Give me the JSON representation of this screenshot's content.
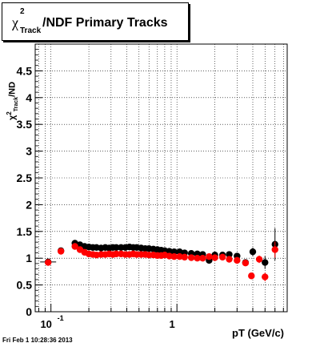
{
  "title": {
    "chi": "χ",
    "sup": "2",
    "sub": "Track",
    "rest": "/NDF  Primary Tracks"
  },
  "ylabel": {
    "chi": "χ",
    "sup": "2",
    "sub": "Track",
    "rest": "/ND"
  },
  "timestamp": "Fri Feb  1 10:28:36 2013",
  "chart_data": {
    "type": "scatter",
    "title": "χ²Track/NDF  Primary Tracks",
    "xlabel": "pT (GeV/c)",
    "ylabel": "χ²Track/ND",
    "xscale": "log",
    "xlim": [
      0.075,
      7.5
    ],
    "ylim": [
      0,
      5
    ],
    "grid": true,
    "yticks": [
      0,
      0.5,
      1,
      1.5,
      2,
      2.5,
      3,
      3.5,
      4,
      4.5
    ],
    "ytick_labels": [
      "0",
      "0.5",
      "1",
      "1.5",
      "2",
      "2.5",
      "3",
      "3.5",
      "4",
      "4.5"
    ],
    "xtick_labels": [
      {
        "v": 0.1,
        "base": "10",
        "exp": "-1"
      },
      {
        "v": 1,
        "base": "1",
        "exp": ""
      }
    ],
    "series": [
      {
        "color": "#000000",
        "points": [
          [
            0.095,
            0.93,
            0.012
          ],
          [
            0.12,
            1.14,
            0.012
          ],
          [
            0.155,
            1.28,
            0.01
          ],
          [
            0.17,
            1.25,
            0.01
          ],
          [
            0.185,
            1.22,
            0.01
          ],
          [
            0.2,
            1.21,
            0.01
          ],
          [
            0.215,
            1.2,
            0.01
          ],
          [
            0.23,
            1.2,
            0.01
          ],
          [
            0.25,
            1.19,
            0.01
          ],
          [
            0.27,
            1.2,
            0.01
          ],
          [
            0.29,
            1.19,
            0.01
          ],
          [
            0.31,
            1.2,
            0.01
          ],
          [
            0.33,
            1.2,
            0.01
          ],
          [
            0.36,
            1.2,
            0.01
          ],
          [
            0.39,
            1.2,
            0.01
          ],
          [
            0.42,
            1.21,
            0.01
          ],
          [
            0.45,
            1.2,
            0.01
          ],
          [
            0.48,
            1.2,
            0.01
          ],
          [
            0.52,
            1.19,
            0.01
          ],
          [
            0.56,
            1.18,
            0.01
          ],
          [
            0.6,
            1.18,
            0.01
          ],
          [
            0.65,
            1.17,
            0.01
          ],
          [
            0.7,
            1.16,
            0.01
          ],
          [
            0.75,
            1.15,
            0.01
          ],
          [
            0.8,
            1.14,
            0.01
          ],
          [
            0.87,
            1.13,
            0.01
          ],
          [
            0.95,
            1.12,
            0.01
          ],
          [
            1.05,
            1.12,
            0.01
          ],
          [
            1.15,
            1.1,
            0.01
          ],
          [
            1.3,
            1.09,
            0.01
          ],
          [
            1.45,
            1.08,
            0.01
          ],
          [
            1.6,
            1.07,
            0.01
          ],
          [
            1.8,
            0.96,
            0.02
          ],
          [
            2.0,
            1.06,
            0.02
          ],
          [
            2.3,
            1.06,
            0.02
          ],
          [
            2.6,
            1.07,
            0.03
          ],
          [
            3.0,
            1.04,
            0.03
          ],
          [
            3.5,
            0.92,
            0.05
          ],
          [
            4.0,
            1.12,
            0.08
          ],
          [
            5.0,
            0.92,
            0.12
          ],
          [
            6.0,
            1.26,
            0.3
          ]
        ]
      },
      {
        "color": "#ff0000",
        "points": [
          [
            0.095,
            0.92,
            0.01
          ],
          [
            0.12,
            1.13,
            0.01
          ],
          [
            0.155,
            1.22,
            0.01
          ],
          [
            0.17,
            1.16,
            0.01
          ],
          [
            0.185,
            1.11,
            0.01
          ],
          [
            0.2,
            1.08,
            0.01
          ],
          [
            0.215,
            1.07,
            0.01
          ],
          [
            0.23,
            1.06,
            0.01
          ],
          [
            0.25,
            1.07,
            0.01
          ],
          [
            0.27,
            1.07,
            0.01
          ],
          [
            0.29,
            1.08,
            0.01
          ],
          [
            0.31,
            1.07,
            0.01
          ],
          [
            0.33,
            1.08,
            0.01
          ],
          [
            0.36,
            1.08,
            0.01
          ],
          [
            0.39,
            1.07,
            0.01
          ],
          [
            0.42,
            1.07,
            0.01
          ],
          [
            0.45,
            1.08,
            0.01
          ],
          [
            0.48,
            1.07,
            0.01
          ],
          [
            0.52,
            1.07,
            0.01
          ],
          [
            0.56,
            1.07,
            0.01
          ],
          [
            0.6,
            1.06,
            0.01
          ],
          [
            0.65,
            1.06,
            0.01
          ],
          [
            0.7,
            1.05,
            0.01
          ],
          [
            0.75,
            1.05,
            0.01
          ],
          [
            0.8,
            1.06,
            0.01
          ],
          [
            0.87,
            1.04,
            0.01
          ],
          [
            0.95,
            1.03,
            0.01
          ],
          [
            1.05,
            1.03,
            0.01
          ],
          [
            1.15,
            1.02,
            0.01
          ],
          [
            1.3,
            1.01,
            0.01
          ],
          [
            1.45,
            1.0,
            0.01
          ],
          [
            1.6,
            1.0,
            0.01
          ],
          [
            1.8,
            1.03,
            0.02
          ],
          [
            2.0,
            1.01,
            0.02
          ],
          [
            2.3,
            1.02,
            0.02
          ],
          [
            2.6,
            0.98,
            0.03
          ],
          [
            3.0,
            0.96,
            0.03
          ],
          [
            3.5,
            0.91,
            0.05
          ],
          [
            3.9,
            0.67,
            0.05
          ],
          [
            4.5,
            0.98,
            0.07
          ],
          [
            5.0,
            0.65,
            0.08
          ],
          [
            6.0,
            1.16,
            0.15
          ]
        ]
      }
    ]
  }
}
